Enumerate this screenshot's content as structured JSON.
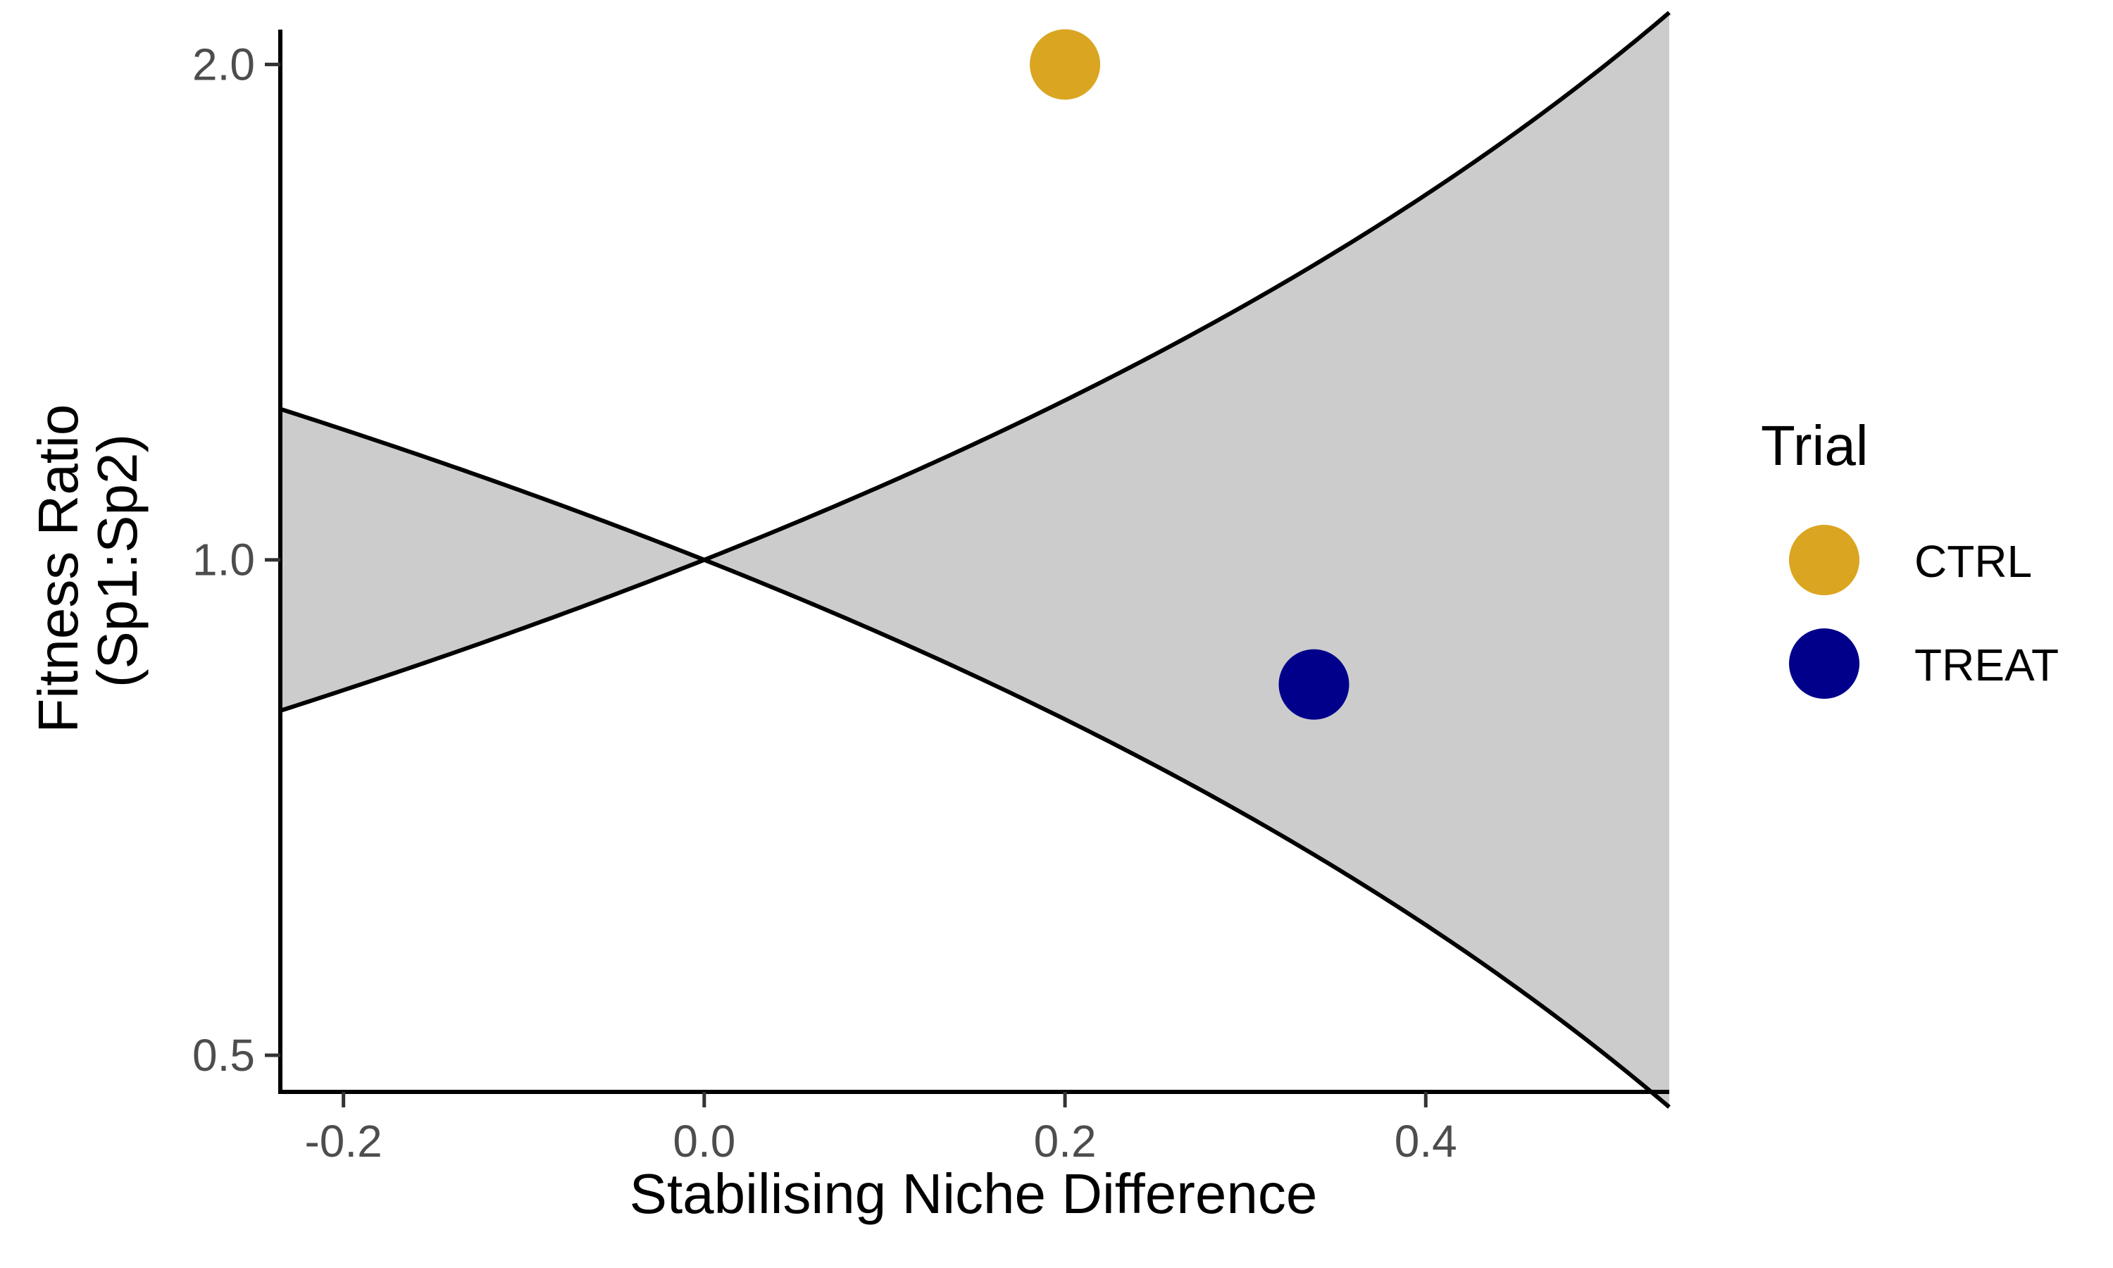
{
  "chart_data": {
    "type": "scatter",
    "xlabel": "Stabilising Niche Difference",
    "ylabel_lines": [
      "Fitness Ratio",
      "(Sp1:Sp2)"
    ],
    "xlim": [
      -0.235,
      0.535
    ],
    "ylim": [
      0.475,
      2.1
    ],
    "y_scale": "log",
    "x_ticks": [
      -0.2,
      0.0,
      0.2,
      0.4
    ],
    "x_tick_labels": [
      "-0.2",
      "0.0",
      "0.2",
      "0.4"
    ],
    "y_ticks": [
      0.5,
      1.0,
      2.0
    ],
    "y_tick_labels": [
      "0.5",
      "1.0",
      "2.0"
    ],
    "coexistence_region": {
      "upper_boundary": "1/(1-x)",
      "lower_boundary": "1-x",
      "fill": "#cccccc",
      "line_color": "#000000"
    },
    "points": [
      {
        "trial": "CTRL",
        "x": 0.2,
        "y": 2.0
      },
      {
        "trial": "TREAT",
        "x": 0.338,
        "y": 0.84
      }
    ],
    "legend": {
      "title": "Trial",
      "position": "right",
      "items": [
        {
          "label": "CTRL",
          "color": "#DAA520"
        },
        {
          "label": "TREAT",
          "color": "#00008B"
        }
      ]
    },
    "grid": false
  }
}
